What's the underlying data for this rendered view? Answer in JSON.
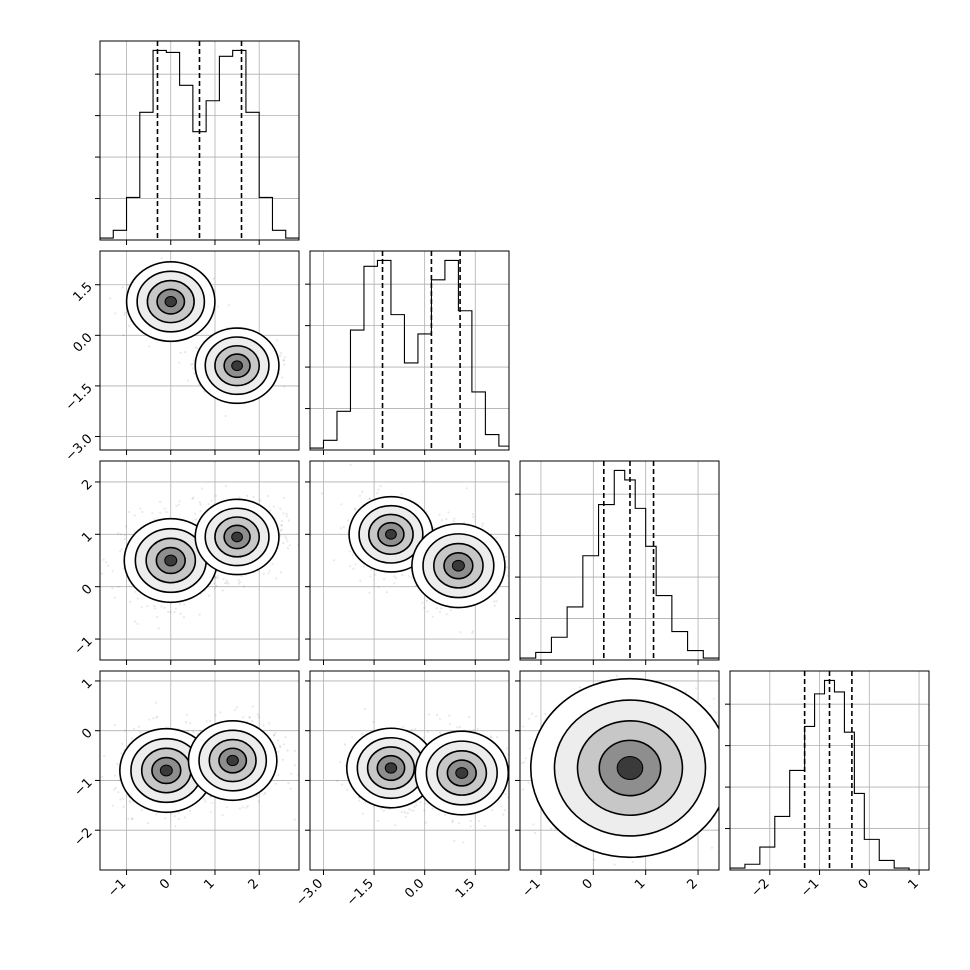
{
  "chart_data": {
    "type": "corner",
    "title": "",
    "axis_ranges": [
      [
        -1.6,
        2.9
      ],
      [
        -3.4,
        2.5
      ],
      [
        -1.4,
        2.4
      ],
      [
        -2.8,
        1.2
      ]
    ],
    "tick_labels": [
      [
        "-1",
        "0",
        "1",
        "2"
      ],
      [
        "-3.0",
        "-1.5",
        "0.0",
        "1.5"
      ],
      [
        "-1",
        "0",
        "1",
        "2"
      ],
      [
        "-2",
        "-1",
        "0",
        "1"
      ]
    ],
    "grid": true,
    "histogram_quantiles": [
      [
        -0.3,
        0.65,
        1.6
      ],
      [
        -1.25,
        0.2,
        1.05
      ],
      [
        0.2,
        0.7,
        1.15
      ],
      [
        -1.3,
        -0.8,
        -0.35
      ]
    ],
    "histograms": [
      {
        "bin_edges": [
          -1.6,
          -1.3,
          -1.0,
          -0.7,
          -0.4,
          -0.1,
          0.2,
          0.5,
          0.8,
          1.1,
          1.4,
          1.7,
          2.0,
          2.3,
          2.6,
          2.9
        ],
        "counts": [
          1,
          5,
          22,
          66,
          98,
          97,
          80,
          56,
          72,
          95,
          98,
          66,
          22,
          5,
          1
        ]
      },
      {
        "bin_edges": [
          -3.4,
          -3.0,
          -2.6,
          -2.2,
          -1.8,
          -1.4,
          -1.0,
          -0.6,
          -0.2,
          0.2,
          0.6,
          1.0,
          1.4,
          1.8,
          2.2,
          2.5
        ],
        "counts": [
          1,
          5,
          20,
          62,
          95,
          98,
          70,
          45,
          60,
          88,
          98,
          72,
          30,
          8,
          2
        ]
      },
      {
        "bin_edges": [
          -1.4,
          -1.1,
          -0.8,
          -0.5,
          -0.2,
          0.1,
          0.4,
          0.6,
          0.8,
          1.0,
          1.2,
          1.5,
          1.8,
          2.1,
          2.4
        ],
        "counts": [
          1,
          4,
          12,
          28,
          55,
          82,
          100,
          95,
          80,
          60,
          34,
          15,
          5,
          1
        ]
      },
      {
        "bin_edges": [
          -2.8,
          -2.5,
          -2.2,
          -1.9,
          -1.6,
          -1.3,
          -1.1,
          -0.9,
          -0.7,
          -0.5,
          -0.3,
          -0.1,
          0.2,
          0.5,
          0.8,
          1.2
        ],
        "counts": [
          1,
          3,
          12,
          28,
          52,
          75,
          92,
          99,
          93,
          72,
          40,
          16,
          5,
          1,
          0
        ]
      }
    ],
    "contour_blobs": [
      {
        "row": 1,
        "col": 0,
        "modes": [
          [
            0.0,
            1.0,
            0.95
          ],
          [
            1.5,
            -0.9,
            0.9
          ]
        ]
      },
      {
        "row": 2,
        "col": 0,
        "modes": [
          [
            0.0,
            0.5,
            1.0
          ],
          [
            1.5,
            0.95,
            0.9
          ]
        ]
      },
      {
        "row": 2,
        "col": 1,
        "modes": [
          [
            -1.0,
            1.0,
            0.9
          ],
          [
            1.0,
            0.4,
            1.0
          ]
        ]
      },
      {
        "row": 3,
        "col": 0,
        "modes": [
          [
            -0.1,
            -0.8,
            1.0
          ],
          [
            1.4,
            -0.6,
            0.95
          ]
        ]
      },
      {
        "row": 3,
        "col": 1,
        "modes": [
          [
            -1.0,
            -0.75,
            0.95
          ],
          [
            1.1,
            -0.85,
            1.0
          ]
        ]
      },
      {
        "row": 3,
        "col": 2,
        "modes": [
          [
            0.7,
            -0.75,
            1.6
          ]
        ]
      }
    ]
  }
}
